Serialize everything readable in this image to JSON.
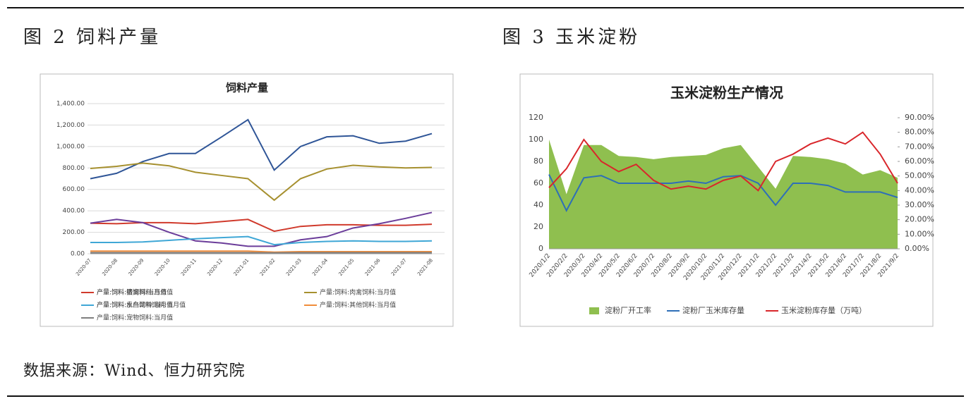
{
  "captions": [
    "图 2 饲料产量",
    "图 3 玉米淀粉"
  ],
  "source": "数据来源：Wind、恒力研究院",
  "chart_data": [
    {
      "type": "line",
      "title": "饲料产量",
      "grid": true,
      "categories": [
        "2020-07",
        "2020-08",
        "2020-09",
        "2020-10",
        "2020-11",
        "2020-12",
        "2021-01",
        "2021-02",
        "2021-03",
        "2021-04",
        "2021-05",
        "2021-06",
        "2021-07",
        "2021-08"
      ],
      "ylim": [
        0,
        1400
      ],
      "yticks": [
        {
          "value": 0,
          "label": "0.00"
        },
        {
          "value": 200,
          "label": "200.00"
        },
        {
          "value": 400,
          "label": "400.00"
        },
        {
          "value": 600,
          "label": "600.00"
        },
        {
          "value": 800,
          "label": "800.00"
        },
        {
          "value": 1000,
          "label": "1,000.00"
        },
        {
          "value": 1200,
          "label": "1,200.00"
        },
        {
          "value": 1400,
          "label": "1,400.00"
        }
      ],
      "series": [
        {
          "name": "产量:饲料:猪饲料:当月值",
          "color": "#2f5597",
          "values": [
            700,
            750,
            860,
            935,
            935,
            1090,
            1250,
            780,
            1000,
            1090,
            1100,
            1030,
            1050,
            1120
          ]
        },
        {
          "name": "产量:饲料:蛋禽饲料:当月值",
          "color": "#d03a2c",
          "values": [
            285,
            280,
            290,
            290,
            280,
            300,
            320,
            210,
            255,
            270,
            270,
            265,
            265,
            275
          ]
        },
        {
          "name": "产量:饲料:肉禽饲料:当月值",
          "color": "#a6902f",
          "values": [
            795,
            815,
            845,
            820,
            760,
            730,
            700,
            500,
            700,
            790,
            825,
            810,
            800,
            805
          ]
        },
        {
          "name": "产量:饲料:水产饲料:当月值",
          "color": "#6b3d9a",
          "values": [
            285,
            320,
            290,
            200,
            120,
            100,
            70,
            70,
            130,
            160,
            240,
            280,
            330,
            385
          ]
        },
        {
          "name": "产量:饲料:反刍动物饲料:当月值",
          "color": "#3fa7d6",
          "values": [
            105,
            105,
            110,
            125,
            140,
            150,
            160,
            85,
            105,
            115,
            120,
            115,
            115,
            120
          ]
        },
        {
          "name": "产量:饲料:其他饲料:当月值",
          "color": "#f08c3a",
          "values": [
            25,
            25,
            25,
            25,
            25,
            25,
            25,
            15,
            20,
            20,
            20,
            20,
            20,
            20
          ]
        },
        {
          "name": "产量:饲料:宠物饲料:当月值",
          "color": "#7f7f7f",
          "values": [
            10,
            10,
            10,
            10,
            10,
            10,
            10,
            8,
            10,
            10,
            10,
            10,
            10,
            10
          ]
        }
      ]
    },
    {
      "type": "line",
      "title": "玉米淀粉生产情况",
      "grid": false,
      "categories": [
        "2020/1/2",
        "2020/2/2",
        "2020/3/2",
        "2020/4/2",
        "2020/5/2",
        "2020/6/2",
        "2020/7/2",
        "2020/8/2",
        "2020/9/2",
        "2020/10/2",
        "2020/11/2",
        "2020/12/2",
        "2021/1/2",
        "2021/2/2",
        "2021/3/2",
        "2021/4/2",
        "2021/5/2",
        "2021/6/2",
        "2021/7/2",
        "2021/8/2",
        "2021/9/2"
      ],
      "ylim": [
        0,
        120
      ],
      "yticks": [
        0,
        20,
        40,
        60,
        80,
        100,
        120
      ],
      "y2lim": [
        0,
        90
      ],
      "y2ticks": [
        {
          "value": 0,
          "label": "0.00%"
        },
        {
          "value": 10,
          "label": "10.00%"
        },
        {
          "value": 20,
          "label": "20.00%"
        },
        {
          "value": 30,
          "label": "30.00%"
        },
        {
          "value": 40,
          "label": "40.00%"
        },
        {
          "value": 50,
          "label": "50.00%"
        },
        {
          "value": 60,
          "label": "60.00%"
        },
        {
          "value": 70,
          "label": "70.00%"
        },
        {
          "value": 80,
          "label": "80.00%"
        },
        {
          "value": 90,
          "label": "90.00%"
        }
      ],
      "series": [
        {
          "name": "淀粉厂开工率",
          "type": "area",
          "color": "#8fbf4f",
          "values": [
            100,
            50,
            95,
            95,
            85,
            84,
            82,
            84,
            85,
            86,
            92,
            95,
            75,
            55,
            85,
            84,
            82,
            78,
            68,
            72,
            65
          ]
        },
        {
          "name": "淀粉厂玉米库存量",
          "color": "#2e6fb7",
          "values": [
            68,
            35,
            65,
            67,
            60,
            60,
            60,
            60,
            62,
            60,
            66,
            67,
            60,
            40,
            60,
            60,
            58,
            52,
            52,
            52,
            47
          ]
        },
        {
          "name": "玉米淀粉库存量（万吨）",
          "color": "#d9262b",
          "axis": "y2",
          "values": [
            42,
            55,
            75,
            60,
            53,
            58,
            47,
            41,
            43,
            41,
            47,
            50,
            40,
            60,
            65,
            72,
            76,
            72,
            80,
            65,
            45
          ]
        }
      ]
    }
  ]
}
